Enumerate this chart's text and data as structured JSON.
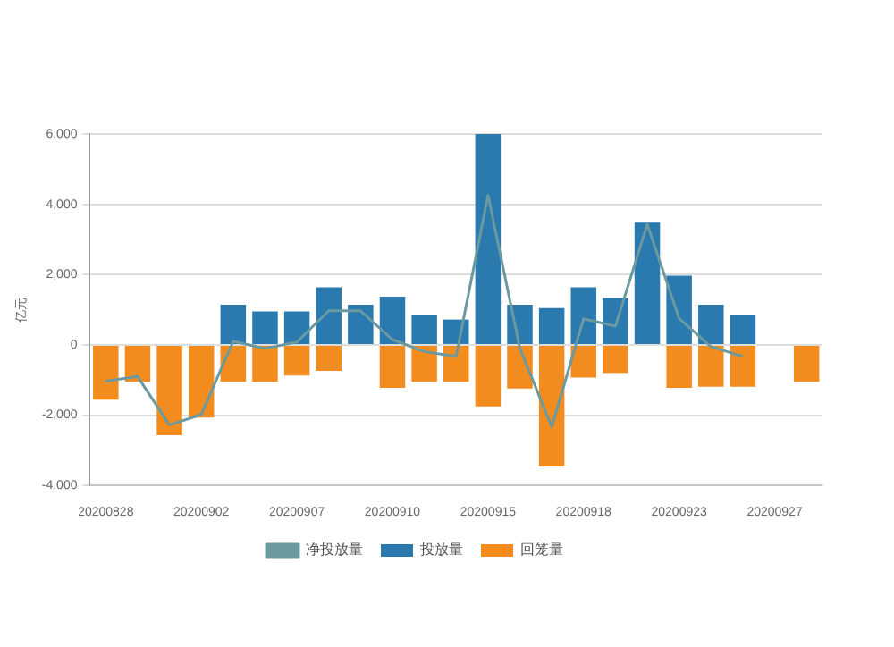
{
  "chart_data": {
    "type": "bar",
    "ylabel": "亿元",
    "categories": [
      "20200828",
      null,
      null,
      "20200902",
      null,
      null,
      "20200907",
      null,
      null,
      "20200910",
      null,
      null,
      "20200915",
      null,
      null,
      "20200918",
      null,
      null,
      "20200923",
      null,
      null,
      "20200927",
      null
    ],
    "stacked": true,
    "series": [
      {
        "name": "投放量",
        "color": "#2a7ab0",
        "values": [
          null,
          null,
          null,
          null,
          1140,
          950,
          950,
          1640,
          1140,
          1370,
          860,
          720,
          6000,
          1140,
          1050,
          1640,
          1330,
          3500,
          1970,
          1140,
          860,
          null,
          null
        ]
      },
      {
        "name": "回笼量",
        "color": "#f28c1e",
        "values": [
          -1560,
          -1050,
          -2570,
          -2070,
          -1050,
          -1050,
          -870,
          -740,
          null,
          -1220,
          -1050,
          -1050,
          -1750,
          -1240,
          -3460,
          -930,
          -800,
          null,
          -1220,
          -1190,
          -1190,
          null,
          -1050
        ]
      },
      {
        "name": "净投放量",
        "type": "line",
        "color": "#6a9aa0",
        "values": [
          -1030,
          -900,
          -2280,
          -1980,
          100,
          -100,
          80,
          970,
          970,
          150,
          -190,
          -330,
          4260,
          -100,
          -2330,
          740,
          530,
          3430,
          750,
          -50,
          -330,
          null,
          null
        ]
      }
    ],
    "ylim": [
      -4000,
      6000
    ],
    "yticks": [
      {
        "value": -4000,
        "label": "-4,000"
      },
      {
        "value": -2000,
        "label": "-2,000"
      },
      0,
      {
        "value": 2000,
        "label": "2,000"
      },
      {
        "value": 4000,
        "label": "4,000"
      },
      {
        "value": 6000,
        "label": "6,000"
      }
    ],
    "grid": "y",
    "legend": "bottom",
    "marker": "none",
    "line_style": "solid"
  }
}
